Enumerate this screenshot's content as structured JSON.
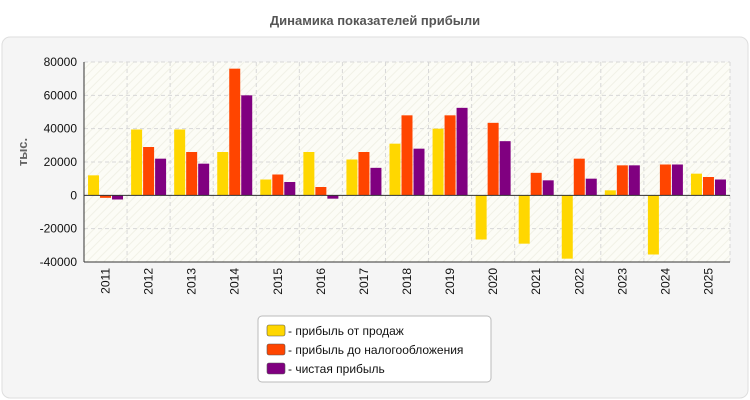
{
  "chart_data": {
    "type": "bar",
    "title": "Динамика показателей прибыли",
    "ylabel": "тыс.",
    "xlabel": "",
    "categories": [
      "2011",
      "2012",
      "2013",
      "2014",
      "2015",
      "2016",
      "2017",
      "2018",
      "2019",
      "2020",
      "2021",
      "2022",
      "2023",
      "2024",
      "2025"
    ],
    "ylim": [
      -40000,
      80000
    ],
    "yticks": [
      -40000,
      -20000,
      0,
      20000,
      40000,
      60000,
      80000
    ],
    "ytick_labels": [
      "-40000",
      "-20000",
      "0",
      "20000",
      "40000",
      "60000",
      "80000"
    ],
    "grid": true,
    "legend_position": "bottom",
    "series": [
      {
        "name": "- прибыль от продаж",
        "color": "#FFD700",
        "values": [
          12000,
          39500,
          39500,
          26000,
          9500,
          26000,
          21500,
          31000,
          40000,
          -26500,
          -29000,
          -38000,
          3000,
          -35500,
          13000
        ]
      },
      {
        "name": "- прибыль до налогообложения",
        "color": "#FF4500",
        "values": [
          -1500,
          29000,
          26000,
          76000,
          12500,
          5000,
          26000,
          48000,
          48000,
          43500,
          13500,
          22000,
          18000,
          18500,
          11000
        ]
      },
      {
        "name": "- чистая прибыль",
        "color": "#800080",
        "values": [
          -2500,
          22000,
          19000,
          60000,
          8000,
          -2000,
          16500,
          28000,
          52500,
          32500,
          9000,
          10000,
          18000,
          18500,
          9500
        ]
      }
    ]
  }
}
